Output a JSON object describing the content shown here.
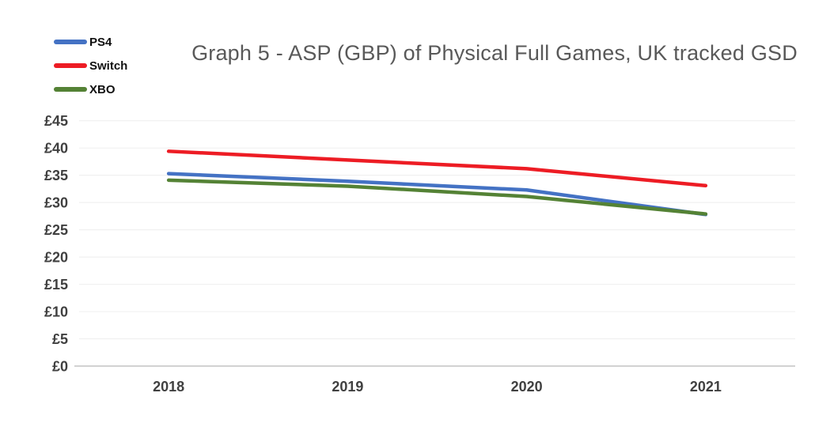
{
  "title": "Graph 5 - ASP (GBP) of Physical Full Games, UK tracked GSD",
  "chart_data": {
    "type": "line",
    "title": "Graph 5 - ASP (GBP) of Physical Full Games, UK tracked GSD",
    "categories": [
      "2018",
      "2019",
      "2020",
      "2021"
    ],
    "series": [
      {
        "name": "PS4",
        "color": "#4472C4",
        "values": [
          35.3,
          33.9,
          32.3,
          27.8
        ]
      },
      {
        "name": "Switch",
        "color": "#ED1C24",
        "values": [
          39.4,
          37.8,
          36.2,
          33.1
        ]
      },
      {
        "name": "XBO",
        "color": "#548235",
        "values": [
          34.1,
          33.0,
          31.1,
          27.9
        ]
      }
    ],
    "xlabel": "",
    "ylabel": "",
    "ylim": [
      0,
      45
    ],
    "y_tick_step": 5,
    "y_tick_labels": [
      "£0",
      "£5",
      "£10",
      "£15",
      "£20",
      "£25",
      "£30",
      "£35",
      "£40",
      "£45"
    ],
    "grid": true,
    "legend_position": "top-left"
  },
  "colors": {
    "background": "#ffffff",
    "title_text": "#595959",
    "axis_text": "#404040",
    "gridline": "#f0f0f0",
    "axis_line": "#d2d2d2"
  }
}
